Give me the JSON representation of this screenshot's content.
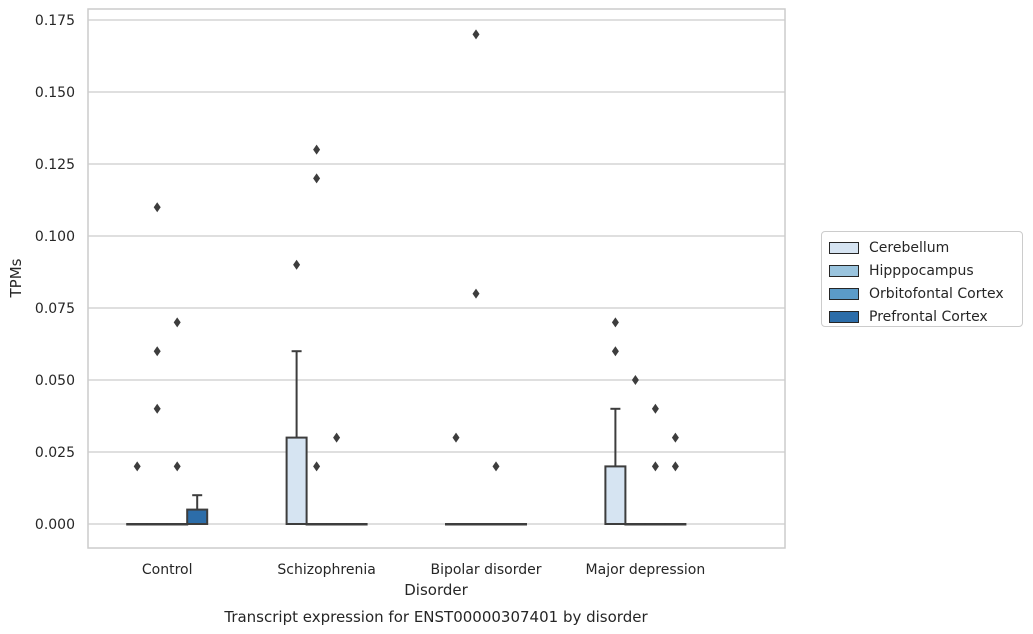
{
  "chart_data": {
    "type": "box",
    "title": "",
    "caption": "Transcript expression for ENST00000307401 by disorder",
    "xlabel": "Disorder",
    "ylabel": "TPMs",
    "ylim": [
      -0.008,
      0.179
    ],
    "yticks": [
      "0.000",
      "0.025",
      "0.050",
      "0.075",
      "0.100",
      "0.125",
      "0.150",
      "0.175"
    ],
    "grid": "horizontal",
    "legend_position": "right",
    "categories": [
      "Control",
      "Schizophrenia",
      "Bipolar disorder",
      "Major depression"
    ],
    "series": [
      {
        "name": "Cerebellum",
        "color": "#d6e4f2",
        "boxes": [
          {
            "q1": 0,
            "median": 0,
            "q3": 0,
            "whisker_low": 0,
            "whisker_high": 0,
            "outliers": [
              0.02
            ]
          },
          {
            "q1": 0,
            "median": 0,
            "q3": 0.03,
            "whisker_low": 0,
            "whisker_high": 0.06,
            "outliers": [
              0.09
            ]
          },
          {
            "q1": 0,
            "median": 0,
            "q3": 0,
            "whisker_low": 0,
            "whisker_high": 0,
            "outliers": [
              0.03
            ]
          },
          {
            "q1": 0,
            "median": 0,
            "q3": 0.02,
            "whisker_low": 0,
            "whisker_high": 0.04,
            "outliers": [
              0.06,
              0.07
            ]
          }
        ]
      },
      {
        "name": "Hipppocampus",
        "color": "#9ac4de",
        "boxes": [
          {
            "q1": 0,
            "median": 0,
            "q3": 0,
            "whisker_low": 0,
            "whisker_high": 0,
            "outliers": [
              0.04,
              0.06,
              0.11
            ]
          },
          {
            "q1": 0,
            "median": 0,
            "q3": 0,
            "whisker_low": 0,
            "whisker_high": 0,
            "outliers": [
              0.02,
              0.12,
              0.13
            ]
          },
          {
            "q1": 0,
            "median": 0,
            "q3": 0,
            "whisker_low": 0,
            "whisker_high": 0,
            "outliers": [
              0.08,
              0.17
            ]
          },
          {
            "q1": 0,
            "median": 0,
            "q3": 0,
            "whisker_low": 0,
            "whisker_high": 0,
            "outliers": [
              0.05
            ]
          }
        ]
      },
      {
        "name": "Orbitofontal Cortex",
        "color": "#5b9bc8",
        "boxes": [
          {
            "q1": 0,
            "median": 0,
            "q3": 0,
            "whisker_low": 0,
            "whisker_high": 0,
            "outliers": [
              0.02,
              0.07
            ]
          },
          {
            "q1": 0,
            "median": 0,
            "q3": 0,
            "whisker_low": 0,
            "whisker_high": 0,
            "outliers": [
              0.03
            ]
          },
          {
            "q1": 0,
            "median": 0,
            "q3": 0,
            "whisker_low": 0,
            "whisker_high": 0,
            "outliers": [
              0.02
            ]
          },
          {
            "q1": 0,
            "median": 0,
            "q3": 0,
            "whisker_low": 0,
            "whisker_high": 0,
            "outliers": [
              0.02,
              0.04
            ]
          }
        ]
      },
      {
        "name": "Prefrontal Cortex",
        "color": "#2c6da9",
        "boxes": [
          {
            "q1": 0,
            "median": 0,
            "q3": 0.005,
            "whisker_low": 0,
            "whisker_high": 0.01,
            "outliers": []
          },
          {
            "q1": 0,
            "median": 0,
            "q3": 0,
            "whisker_low": 0,
            "whisker_high": 0,
            "outliers": []
          },
          {
            "q1": 0,
            "median": 0,
            "q3": 0,
            "whisker_low": 0,
            "whisker_high": 0,
            "outliers": []
          },
          {
            "q1": 0,
            "median": 0,
            "q3": 0,
            "whisker_low": 0,
            "whisker_high": 0,
            "outliers": [
              0.02,
              0.03
            ]
          }
        ]
      }
    ]
  }
}
